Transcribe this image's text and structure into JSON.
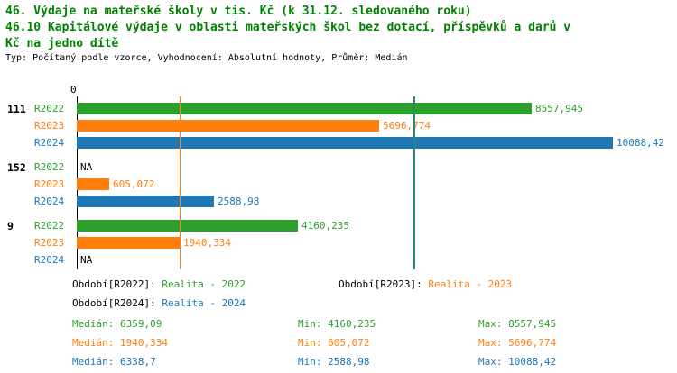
{
  "title": {
    "line1": "46. Výdaje na mateřské školy v tis. Kč (k 31.12. sledovaného roku)",
    "line2": "46.10 Kapitálové výdaje v oblasti mateřských škol bez dotací, příspěvků a darů v",
    "line3": "Kč na jedno dítě",
    "subtitle": "Typ: Počítaný podle vzorce, Vyhodnocení: Absolutní hodnoty, Průměr: Medián"
  },
  "colors": {
    "title_green": "#008000",
    "green": "#2ca02c",
    "orange": "#ff7f0e",
    "blue": "#1f77b4",
    "axis": "#000000",
    "na_text": "#000000"
  },
  "chart_data": {
    "type": "bar",
    "orientation": "horizontal",
    "axis_zero_label": "0",
    "x_min": 0,
    "x_max": 10088.42,
    "series": [
      "R2022",
      "R2023",
      "R2024"
    ],
    "groups": [
      {
        "label": "111",
        "bars": [
          {
            "series": "R2022",
            "color": "green",
            "value": 8557.945,
            "value_label": "8557,945"
          },
          {
            "series": "R2023",
            "color": "orange",
            "value": 5696.774,
            "value_label": "5696,774"
          },
          {
            "series": "R2024",
            "color": "blue",
            "value": 10088.42,
            "value_label": "10088,42"
          }
        ]
      },
      {
        "label": "152",
        "bars": [
          {
            "series": "R2022",
            "color": "green",
            "value": null,
            "value_label": "NA"
          },
          {
            "series": "R2023",
            "color": "orange",
            "value": 605.072,
            "value_label": "605,072"
          },
          {
            "series": "R2024",
            "color": "blue",
            "value": 2588.98,
            "value_label": "2588,98"
          }
        ]
      },
      {
        "label": "9",
        "bars": [
          {
            "series": "R2022",
            "color": "green",
            "value": 4160.235,
            "value_label": "4160,235"
          },
          {
            "series": "R2023",
            "color": "orange",
            "value": 1940.334,
            "value_label": "1940,334"
          },
          {
            "series": "R2024",
            "color": "blue",
            "value": null,
            "value_label": "NA"
          }
        ]
      }
    ],
    "median_lines": [
      {
        "series": "R2022",
        "color": "green",
        "value": 6359.09
      },
      {
        "series": "R2023",
        "color": "orange",
        "value": 1940.334
      },
      {
        "series": "R2024",
        "color": "blue",
        "value": 6338.7
      }
    ]
  },
  "legend": [
    {
      "series": "R2022",
      "label": "Období[R2022]:",
      "value": "Realita - 2022",
      "color": "green"
    },
    {
      "series": "R2023",
      "label": "Období[R2023]:",
      "value": "Realita - 2023",
      "color": "orange"
    },
    {
      "series": "R2024",
      "label": "Období[R2024]:",
      "value": "Realita - 2024",
      "color": "blue"
    }
  ],
  "stats": [
    {
      "series": "R2022",
      "color": "green",
      "median": "Medián: 6359,09",
      "min": "Min: 4160,235",
      "max": "Max: 8557,945"
    },
    {
      "series": "R2023",
      "color": "orange",
      "median": "Medián: 1940,334",
      "min": "Min: 605,072",
      "max": "Max: 5696,774"
    },
    {
      "series": "R2024",
      "color": "blue",
      "median": "Medián: 6338,7",
      "min": "Min: 2588,98",
      "max": "Max: 10088,42"
    }
  ]
}
